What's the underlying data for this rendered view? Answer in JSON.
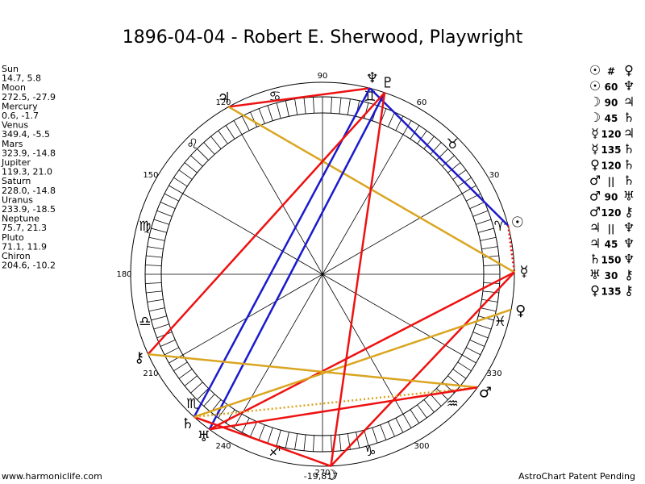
{
  "title": "1896-04-04 - Robert E. Sherwood, Playwright",
  "planets": [
    {
      "name": "Sun",
      "position": "14.7, 5.8",
      "glyph": "☉"
    },
    {
      "name": "Moon",
      "position": "272.5, -27.9",
      "glyph": "☽"
    },
    {
      "name": "Mercury",
      "position": "0.6, -1.7",
      "glyph": "☿"
    },
    {
      "name": "Venus",
      "position": "349.4, -5.5",
      "glyph": "♀"
    },
    {
      "name": "Mars",
      "position": "323.9, -14.8",
      "glyph": "♂"
    },
    {
      "name": "Jupiter",
      "position": "119.3, 21.0",
      "glyph": "♃"
    },
    {
      "name": "Saturn",
      "position": "228.0, -14.8",
      "glyph": "♄"
    },
    {
      "name": "Uranus",
      "position": "233.9, -18.5",
      "glyph": "♅"
    },
    {
      "name": "Neptune",
      "position": "75.7, 21.3",
      "glyph": "♆"
    },
    {
      "name": "Pluto",
      "position": "71.1, 11.9",
      "glyph": "♇"
    },
    {
      "name": "Chiron",
      "position": "204.6, -10.2",
      "glyph": "⚷"
    }
  ],
  "zodiac": [
    "♈",
    "♉",
    "♊",
    "♋",
    "♌",
    "♍",
    "♎",
    "♏",
    "♐",
    "♑",
    "♒",
    "♓"
  ],
  "degree_labels": [
    30,
    60,
    90,
    120,
    150,
    180,
    210,
    240,
    270,
    300,
    330
  ],
  "aspects": [
    {
      "a": "☉",
      "aspect": "#",
      "b": "♀"
    },
    {
      "a": "☉",
      "aspect": "60",
      "b": "♆"
    },
    {
      "a": "☽",
      "aspect": "90",
      "b": "♃"
    },
    {
      "a": "☽",
      "aspect": "45",
      "b": "♄"
    },
    {
      "a": "☿",
      "aspect": "120",
      "b": "♃"
    },
    {
      "a": "☿",
      "aspect": "135",
      "b": "♄"
    },
    {
      "a": "♀",
      "aspect": "120",
      "b": "♄"
    },
    {
      "a": "♂",
      "aspect": "||",
      "b": "♄"
    },
    {
      "a": "♂",
      "aspect": "90",
      "b": "♅"
    },
    {
      "a": "♂",
      "aspect": "120",
      "b": "⚷"
    },
    {
      "a": "♃",
      "aspect": "||",
      "b": "♆"
    },
    {
      "a": "♃",
      "aspect": "45",
      "b": "♆"
    },
    {
      "a": "♄",
      "aspect": "150",
      "b": "♆"
    },
    {
      "a": "♅",
      "aspect": "30",
      "b": "⚷"
    },
    {
      "a": "♀",
      "aspect": "135",
      "b": "⚷"
    }
  ],
  "footer": {
    "website": "www.harmoniclife.com",
    "value": "-19,817",
    "notice": "AstroChart Patent Pending"
  }
}
